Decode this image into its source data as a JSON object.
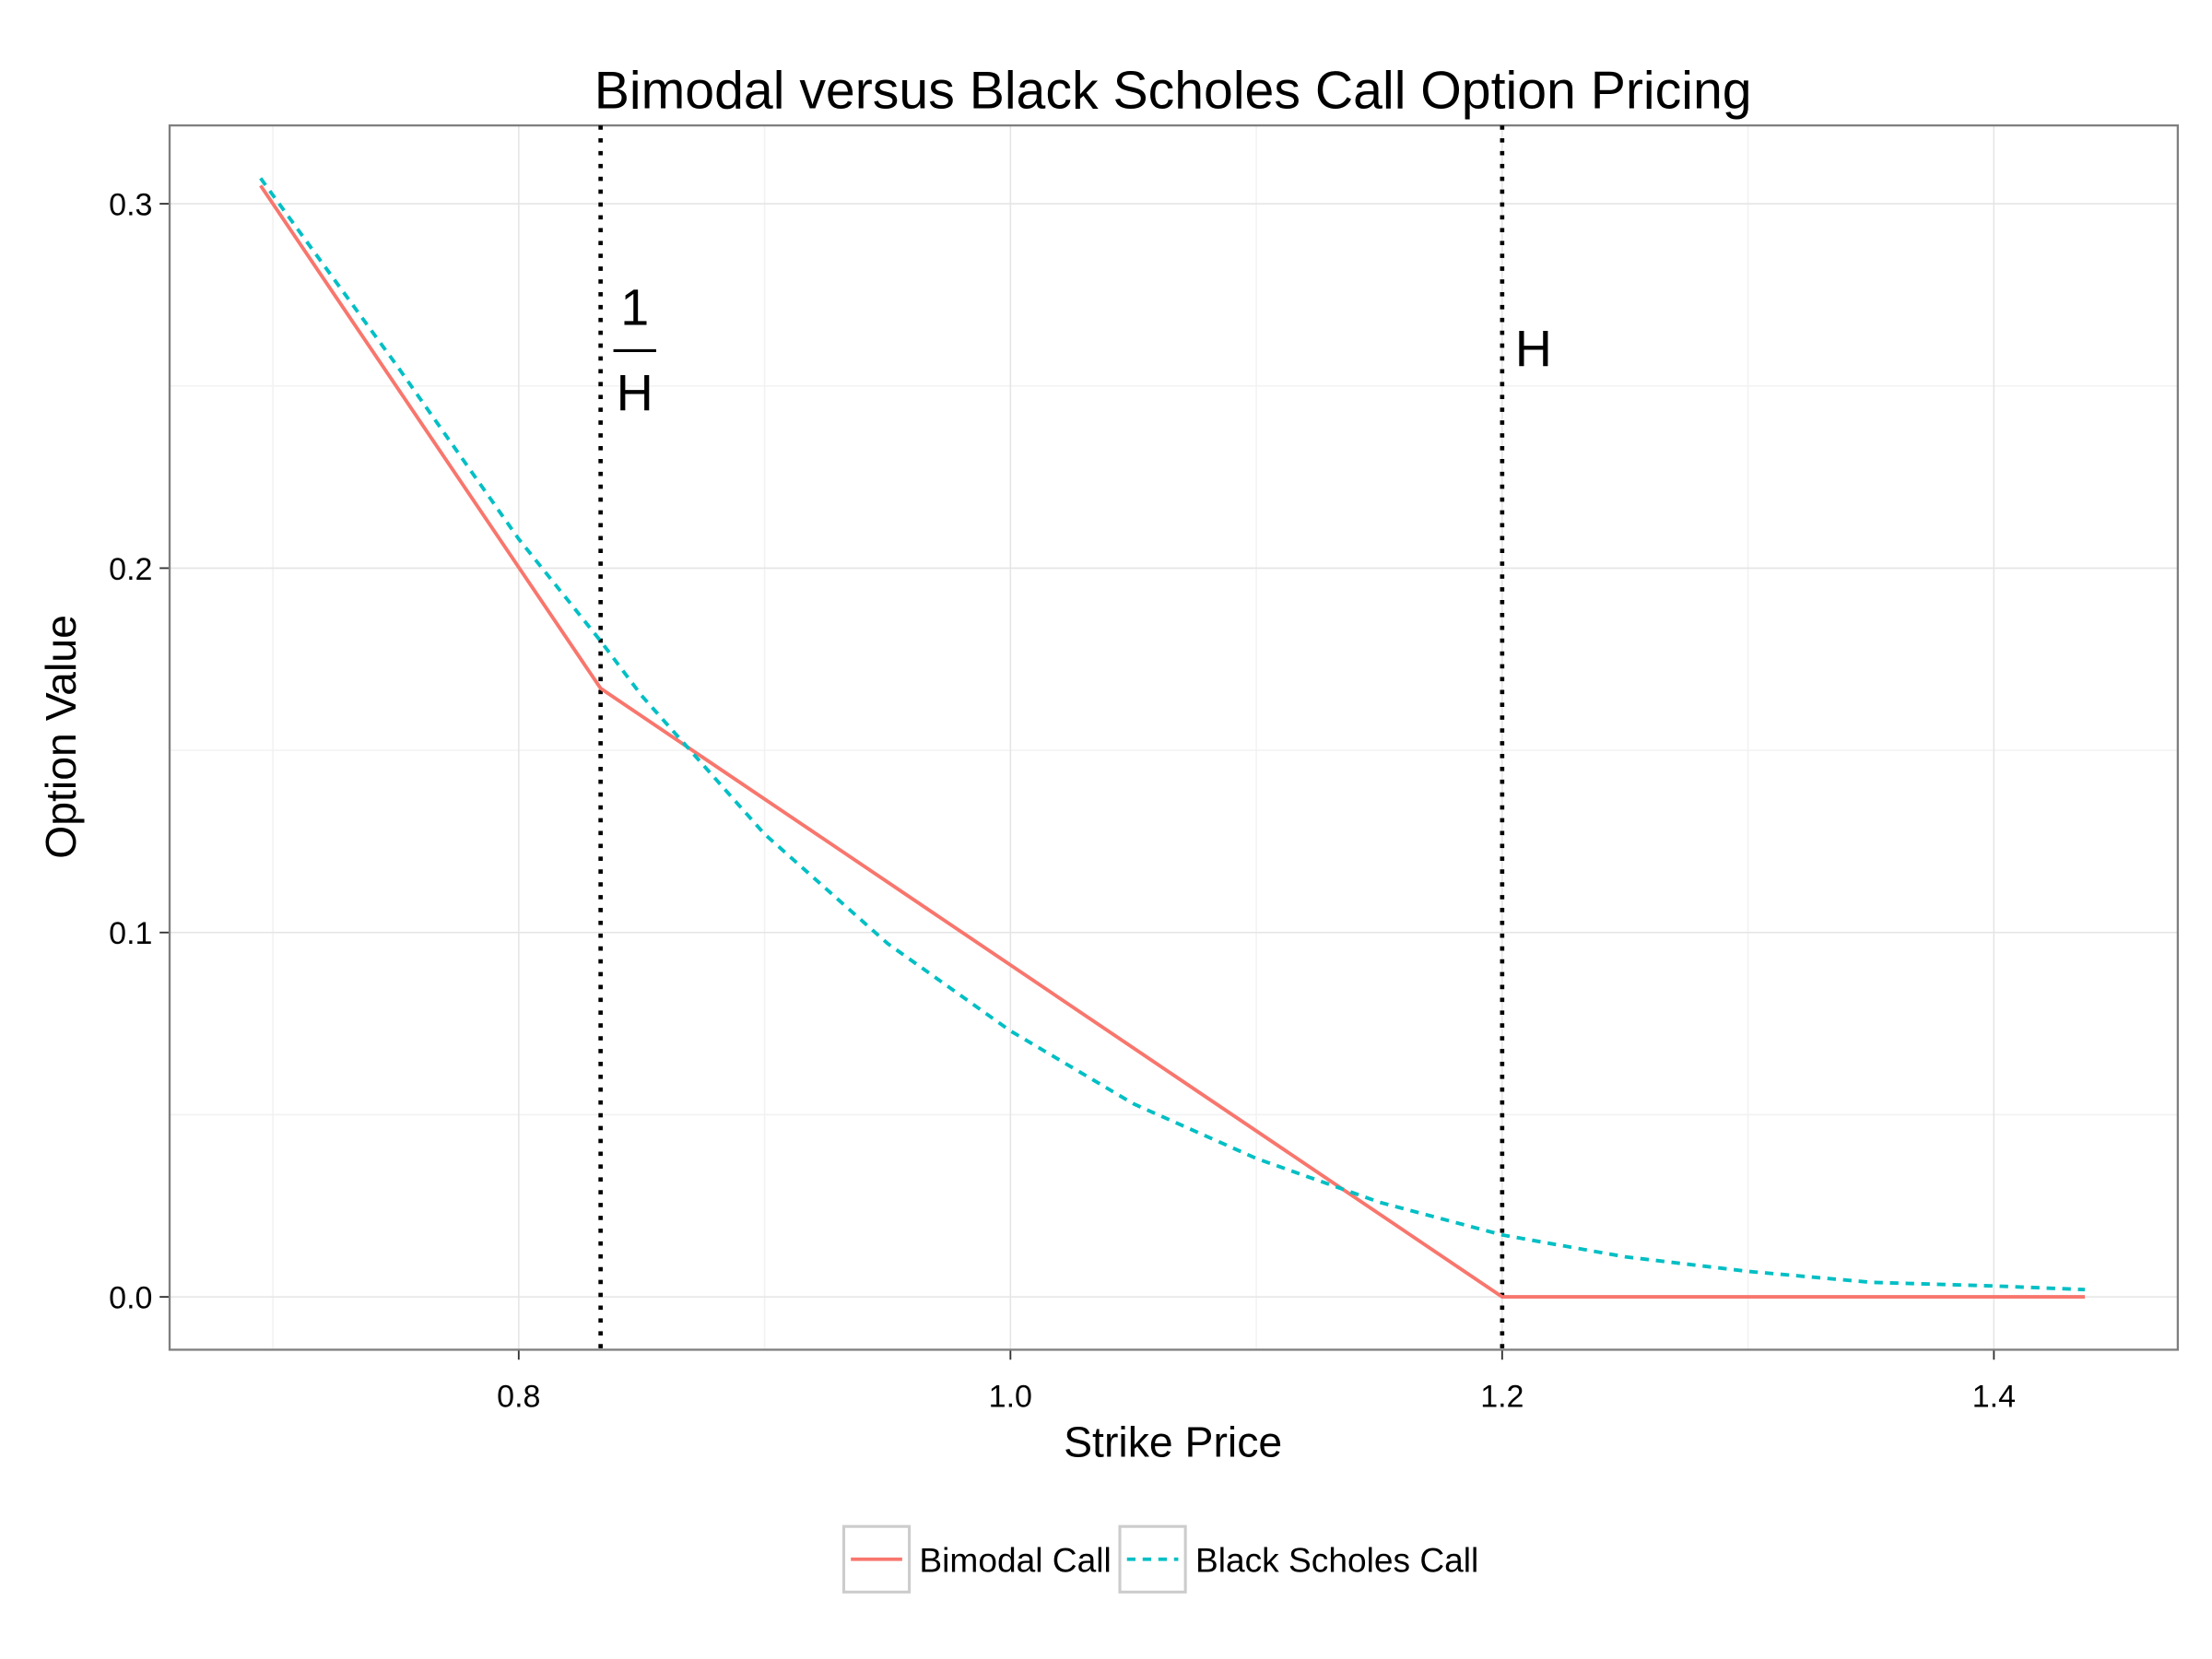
{
  "chart_data": {
    "type": "line",
    "title": "Bimodal versus Black Scholes Call Option Pricing",
    "x_label": "Strike Price",
    "y_label": "Option Value",
    "xlim": [
      0.658,
      1.4748
    ],
    "ylim": [
      -0.0145,
      0.3215
    ],
    "xticks": [
      {
        "value": 0.8,
        "label": "0.8"
      },
      {
        "value": 1.0,
        "label": "1.0"
      },
      {
        "value": 1.2,
        "label": "1.2"
      },
      {
        "value": 1.4,
        "label": "1.4"
      }
    ],
    "yticks": [
      {
        "value": 0.0,
        "label": "0.0"
      },
      {
        "value": 0.1,
        "label": "0.1"
      },
      {
        "value": 0.2,
        "label": "0.2"
      },
      {
        "value": 0.3,
        "label": "0.3"
      }
    ],
    "xminor": [
      0.7,
      0.9,
      1.1,
      1.3
    ],
    "yminor": [
      0.05,
      0.15,
      0.25
    ],
    "grid": true,
    "legend": "bottom",
    "series": [
      {
        "name": "Bimodal Call",
        "color": "#f8766d",
        "linestyle": "solid",
        "x": [
          0.695,
          0.8333,
          1.2,
          1.437
        ],
        "values": [
          0.305,
          0.167,
          0,
          0
        ]
      },
      {
        "name": "Black Scholes Call",
        "color": "#00bfc4",
        "linestyle": "dashed",
        "x": [
          0.695,
          0.75,
          0.8,
          0.8333,
          0.85,
          0.9,
          0.95,
          1.0,
          1.05,
          1.1,
          1.15,
          1.2,
          1.25,
          1.3,
          1.35,
          1.4,
          1.437
        ],
        "values": [
          0.307,
          0.256,
          0.208,
          0.18,
          0.165,
          0.127,
          0.097,
          0.073,
          0.053,
          0.038,
          0.026,
          0.017,
          0.011,
          0.007,
          0.004,
          0.003,
          0.002
        ]
      }
    ],
    "vlines": [
      {
        "x": 0.8333,
        "numerator": "1",
        "denominator": "H"
      },
      {
        "x": 1.2,
        "label": "H"
      }
    ]
  }
}
